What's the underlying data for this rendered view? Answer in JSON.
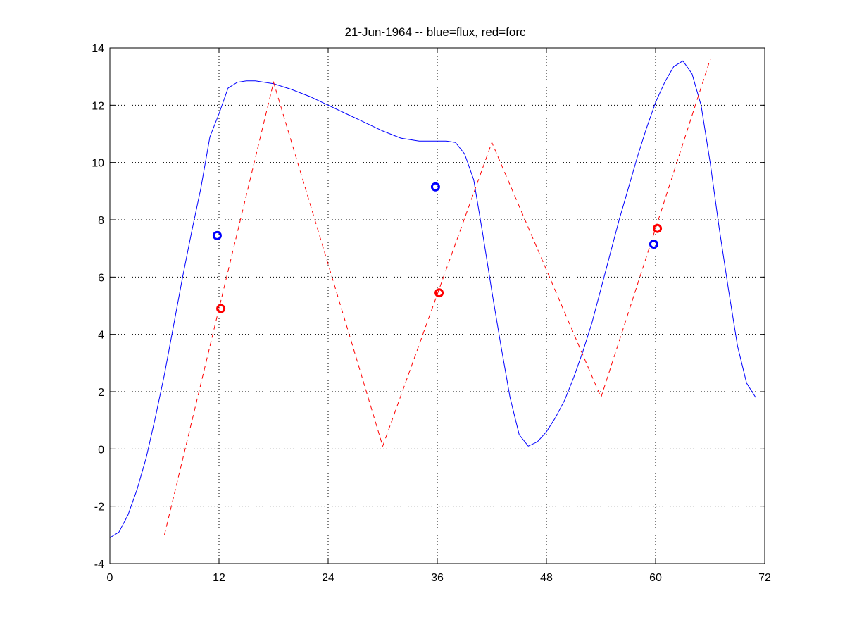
{
  "chart_data": {
    "type": "line",
    "title": "21-Jun-1964 -- blue=flux, red=forc",
    "xlabel": "",
    "ylabel": "",
    "xlim": [
      0,
      72
    ],
    "ylim": [
      -4,
      14
    ],
    "xticks": [
      0,
      12,
      24,
      36,
      48,
      60,
      72
    ],
    "yticks": [
      -4,
      -2,
      0,
      2,
      4,
      6,
      8,
      10,
      12,
      14
    ],
    "grid": true,
    "series": [
      {
        "color": "#0000ff",
        "style": "solid",
        "x": [
          0,
          1,
          2,
          3,
          4,
          5,
          6,
          7,
          8,
          9,
          10,
          11,
          12,
          13,
          14,
          15,
          16,
          17,
          18,
          19,
          20,
          22,
          24,
          26,
          28,
          30,
          32,
          34,
          36,
          37,
          38,
          39,
          40,
          41,
          42,
          43,
          44,
          45,
          46,
          47,
          48,
          49,
          50,
          51,
          52,
          53,
          54,
          55,
          56,
          57,
          58,
          59,
          60,
          61,
          62,
          63,
          64,
          65,
          66,
          67,
          68,
          69,
          70,
          71
        ],
        "y": [
          -3.1,
          -2.9,
          -2.3,
          -1.4,
          -0.3,
          1.1,
          2.6,
          4.3,
          6.0,
          7.6,
          9.1,
          10.9,
          11.7,
          12.6,
          12.8,
          12.85,
          12.85,
          12.8,
          12.75,
          12.65,
          12.55,
          12.3,
          12.0,
          11.7,
          11.4,
          11.1,
          10.85,
          10.75,
          10.75,
          10.75,
          10.7,
          10.3,
          9.4,
          7.5,
          5.5,
          3.6,
          1.8,
          0.5,
          0.1,
          0.25,
          0.6,
          1.1,
          1.7,
          2.5,
          3.4,
          4.4,
          5.6,
          6.8,
          8.0,
          9.1,
          10.2,
          11.2,
          12.1,
          12.8,
          13.35,
          13.55,
          13.1,
          12.0,
          10.0,
          7.7,
          5.6,
          3.6,
          2.3,
          1.8
        ]
      },
      {
        "color": "#ff0000",
        "style": "dashed",
        "x": [
          6,
          18,
          30,
          42,
          54,
          66
        ],
        "y": [
          -3.0,
          12.8,
          0.1,
          10.7,
          1.8,
          13.6
        ]
      }
    ],
    "markers": [
      {
        "color": "#0000ff",
        "points": [
          [
            11.8,
            7.45
          ],
          [
            35.8,
            9.15
          ],
          [
            59.8,
            7.15
          ]
        ]
      },
      {
        "color": "#ff0000",
        "points": [
          [
            12.2,
            4.9
          ],
          [
            36.2,
            5.45
          ],
          [
            60.2,
            7.7
          ]
        ]
      }
    ]
  }
}
